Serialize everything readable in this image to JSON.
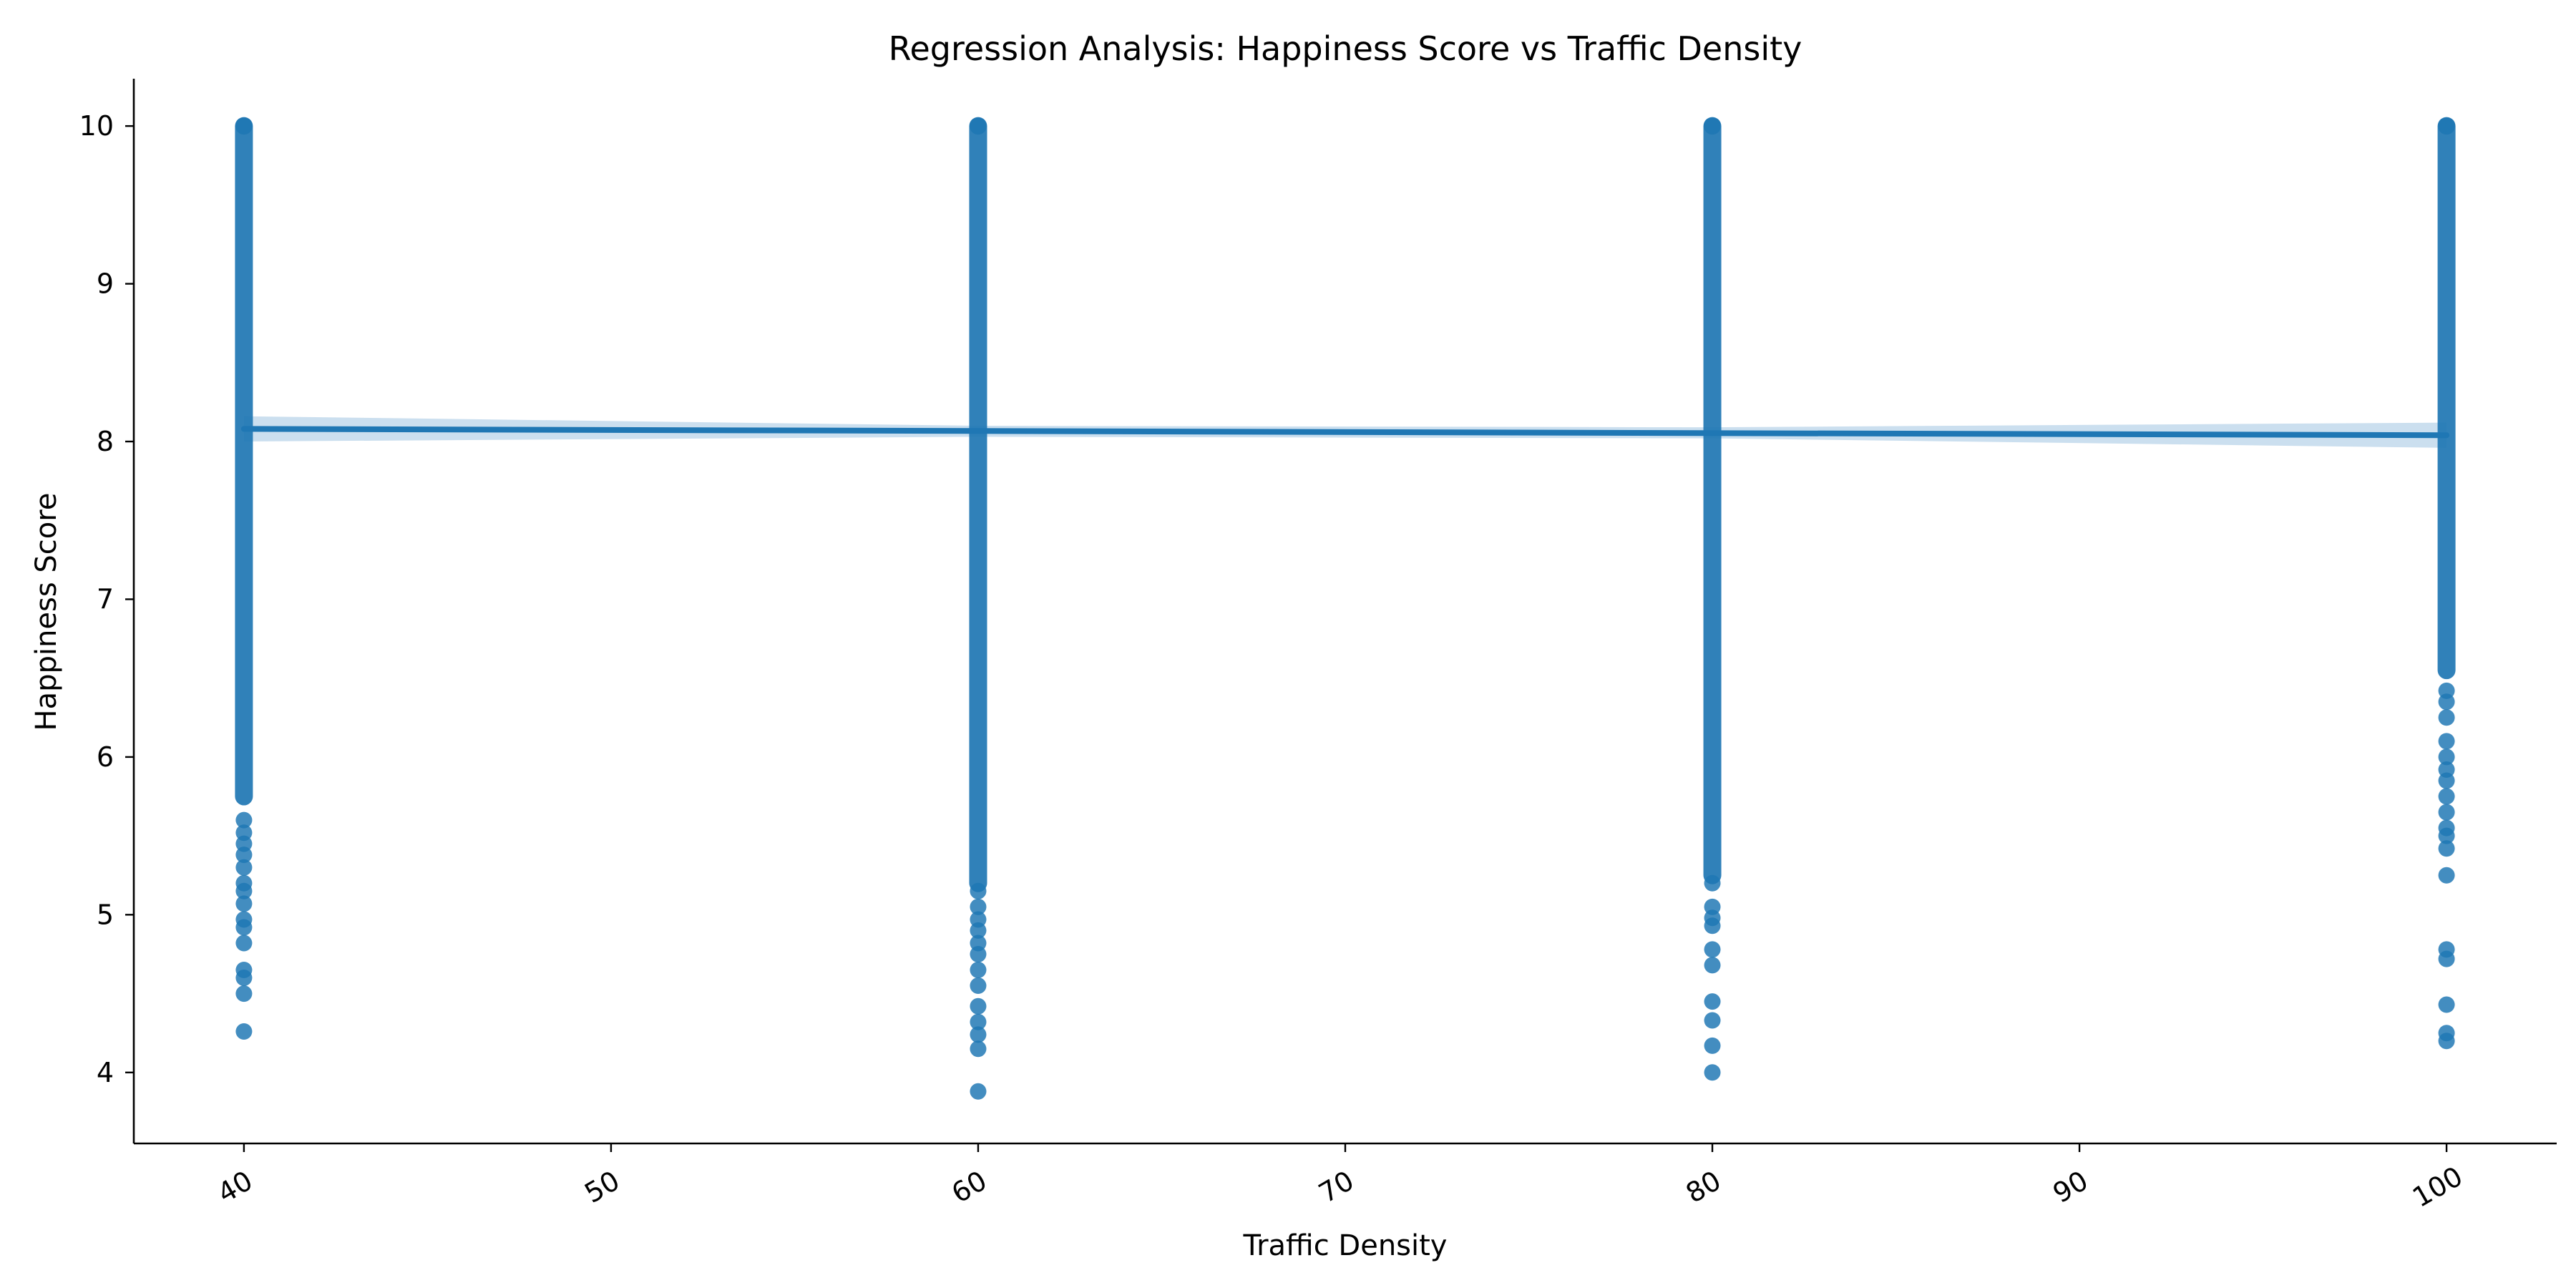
{
  "chart_data": {
    "type": "scatter",
    "title": "Regression Analysis: Happiness Score vs Traffic Density",
    "xlabel": "Traffic Density",
    "ylabel": "Happiness Score",
    "xlim": [
      37,
      103
    ],
    "ylim": [
      3.55,
      10.3
    ],
    "x_ticks": [
      40,
      50,
      60,
      70,
      80,
      90,
      100
    ],
    "y_ticks": [
      4,
      5,
      6,
      7,
      8,
      9,
      10
    ],
    "x_tick_labels": [
      "40",
      "50",
      "60",
      "70",
      "80",
      "90",
      "100"
    ],
    "y_tick_labels": [
      "4",
      "5",
      "6",
      "7",
      "8",
      "9",
      "10"
    ],
    "x_tick_rotation_deg": 30,
    "grid": false,
    "legend": "none",
    "colors": {
      "points": "#1f77b4",
      "regression_line": "#1f77b4",
      "confidence_band": "#b9d4ea"
    },
    "series": [
      {
        "type": "scatter",
        "groups": [
          {
            "x": 40,
            "dense_range": [
              5.75,
              10.0
            ],
            "outliers": [
              5.6,
              5.52,
              5.45,
              5.38,
              5.3,
              5.2,
              5.15,
              5.07,
              4.97,
              4.92,
              4.82,
              4.65,
              4.6,
              4.5,
              4.26
            ]
          },
          {
            "x": 60,
            "dense_range": [
              5.2,
              10.0
            ],
            "outliers": [
              5.15,
              5.05,
              4.97,
              4.9,
              4.82,
              4.75,
              4.65,
              4.55,
              4.42,
              4.32,
              4.24,
              4.15,
              3.88
            ]
          },
          {
            "x": 80,
            "dense_range": [
              5.25,
              10.0
            ],
            "outliers": [
              5.2,
              5.05,
              4.98,
              4.93,
              4.78,
              4.68,
              4.45,
              4.33,
              4.17,
              4.0
            ]
          },
          {
            "x": 100,
            "dense_range": [
              6.55,
              10.0
            ],
            "outliers": [
              6.42,
              6.35,
              6.25,
              6.1,
              6.0,
              5.92,
              5.85,
              5.75,
              5.65,
              5.55,
              5.5,
              5.42,
              5.25,
              4.78,
              4.72,
              4.43,
              4.25,
              4.2
            ]
          }
        ]
      },
      {
        "type": "line",
        "x": [
          40,
          100
        ],
        "y": [
          8.08,
          8.04
        ],
        "confidence_band": {
          "x": [
            40,
            60,
            80,
            100
          ],
          "lower": [
            8.0,
            8.03,
            8.02,
            7.96
          ],
          "upper": [
            8.16,
            8.1,
            8.09,
            8.12
          ]
        }
      }
    ]
  }
}
